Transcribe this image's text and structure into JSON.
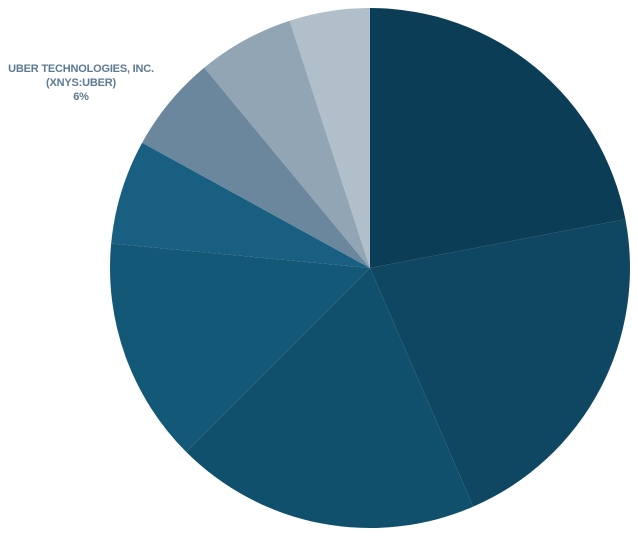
{
  "chart_data": {
    "type": "pie",
    "categories": [
      null,
      null,
      null,
      null,
      null,
      "UBER TECHNOLOGIES, INC. (XNYS:UBER)",
      null,
      null
    ],
    "values": [
      22,
      21.5,
      19,
      14,
      6.5,
      6,
      6,
      5
    ],
    "value_labels": [
      null,
      null,
      null,
      null,
      null,
      "6%",
      null,
      null
    ],
    "colors": [
      "#0c3d56",
      "#0f4762",
      "#11506d",
      "#145877",
      "#185f82",
      "#6a879d",
      "#91a5b5",
      "#b1bfca"
    ]
  }
}
